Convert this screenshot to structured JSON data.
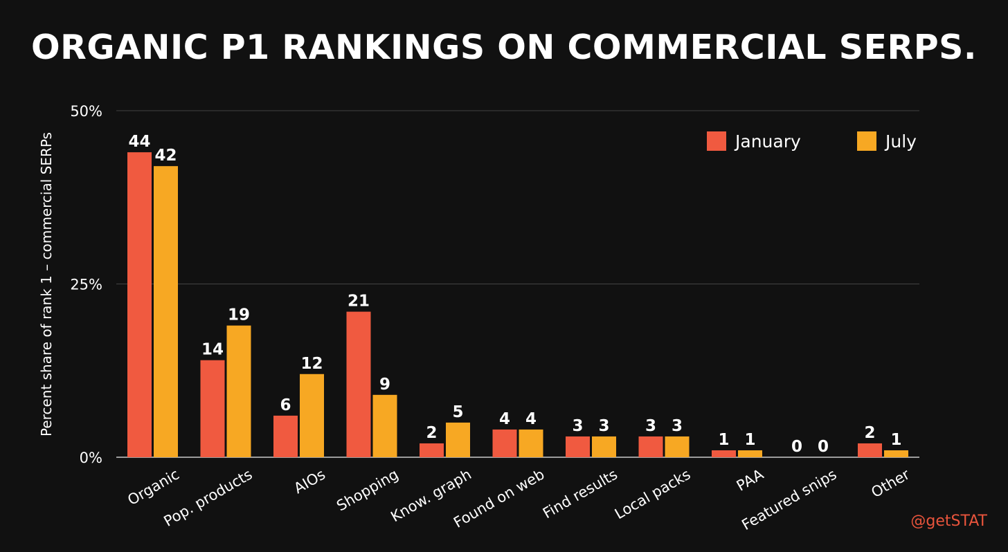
{
  "colors": {
    "background": "#111111",
    "january": "#f05a40",
    "july": "#f7a823",
    "grid": "#444444",
    "text": "#ffffff",
    "watermark": "#e8543c"
  },
  "watermark": "@getSTAT",
  "chart_data": {
    "type": "bar",
    "title": "ORGANIC P1 RANKINGS ON COMMERCIAL SERPS.",
    "xlabel": "",
    "ylabel": "Percent share of rank 1 – commercial SERPs",
    "ylim": [
      0,
      50
    ],
    "yticks": [
      0,
      25,
      50
    ],
    "ytick_labels": [
      "0%",
      "25%",
      "50%"
    ],
    "legend_position": "top-right",
    "categories": [
      "Organic",
      "Pop. products",
      "AIOs",
      "Shopping",
      "Know. graph",
      "Found on web",
      "Find results",
      "Local packs",
      "PAA",
      "Featured snips",
      "Other"
    ],
    "series": [
      {
        "name": "January",
        "color": "#f05a40",
        "values": [
          44,
          14,
          6,
          21,
          2,
          4,
          3,
          3,
          1,
          0,
          2
        ]
      },
      {
        "name": "July",
        "color": "#f7a823",
        "values": [
          42,
          19,
          12,
          9,
          5,
          4,
          3,
          3,
          1,
          0,
          1
        ]
      }
    ]
  }
}
